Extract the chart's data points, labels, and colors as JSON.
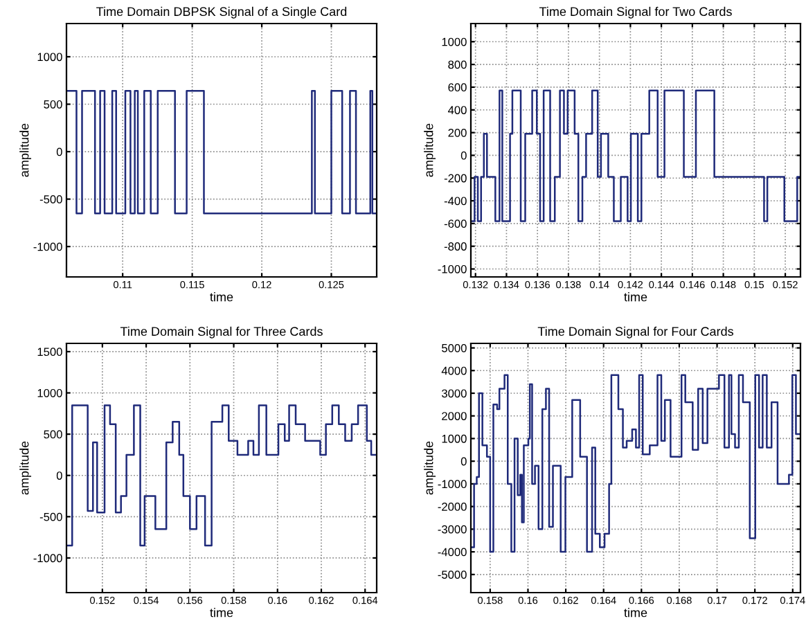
{
  "chart_data": [
    {
      "type": "step",
      "title": "Time Domain DBPSK Signal of a Single Card",
      "xlabel": "time",
      "ylabel": "amplitude",
      "grid": true,
      "xlim": [
        0.10596,
        0.12826
      ],
      "ylim": [
        -1320,
        1350
      ],
      "xticks": [
        0.11,
        0.115,
        0.12,
        0.125
      ],
      "yticks": [
        -1000,
        -500,
        0,
        500,
        1000
      ],
      "series": [
        {
          "color": "#1f2a7a",
          "x": [
            0.10596,
            0.10668,
            0.10708,
            0.10801,
            0.10838,
            0.1087,
            0.10925,
            0.10953,
            0.11019,
            0.11056,
            0.11087,
            0.11109,
            0.11155,
            0.11202,
            0.11252,
            0.11376,
            0.1146,
            0.11584,
            0.1236,
            0.12382,
            0.125,
            0.12578,
            0.12634,
            0.12677,
            0.1278,
            0.12795,
            0.12826
          ],
          "values": [
            640,
            -650,
            640,
            -650,
            640,
            -650,
            640,
            -650,
            640,
            -650,
            640,
            -650,
            640,
            -650,
            640,
            -650,
            640,
            -650,
            640,
            -650,
            640,
            -650,
            640,
            -650,
            640,
            -650,
            -650
          ]
        }
      ]
    },
    {
      "type": "step",
      "title": "Time Domain Signal for Two Cards",
      "xlabel": "time",
      "ylabel": "amplitude",
      "grid": true,
      "xlim": [
        0.1317,
        0.15298
      ],
      "ylim": [
        -1070,
        1160
      ],
      "xticks": [
        0.132,
        0.134,
        0.136,
        0.138,
        0.14,
        0.142,
        0.144,
        0.146,
        0.148,
        0.15,
        0.152
      ],
      "yticks": [
        -1000,
        -800,
        -600,
        -400,
        -200,
        0,
        200,
        400,
        600,
        800,
        1000
      ],
      "series": [
        {
          "color": "#1f2a7a",
          "x": [
            0.1317,
            0.13194,
            0.13215,
            0.13236,
            0.13254,
            0.13274,
            0.13328,
            0.13355,
            0.13373,
            0.13423,
            0.13438,
            0.13492,
            0.13521,
            0.13566,
            0.13596,
            0.13617,
            0.1364,
            0.13682,
            0.13712,
            0.13745,
            0.13771,
            0.13795,
            0.1384,
            0.13864,
            0.1389,
            0.13914,
            0.13953,
            0.13989,
            0.1401,
            0.14057,
            0.14093,
            0.14138,
            0.14182,
            0.14203,
            0.14248,
            0.14271,
            0.14322,
            0.14376,
            0.1442,
            0.14545,
            0.14623,
            0.14742,
            0.15063,
            0.15084,
            0.15194,
            0.15277,
            0.15298
          ],
          "values": [
            -580,
            -190,
            -580,
            -190,
            190,
            -190,
            -580,
            570,
            -580,
            190,
            570,
            -580,
            190,
            570,
            190,
            -580,
            570,
            -580,
            -190,
            570,
            190,
            570,
            190,
            -580,
            -190,
            190,
            570,
            -190,
            190,
            -190,
            -580,
            -190,
            -580,
            190,
            -580,
            190,
            570,
            -190,
            570,
            -190,
            570,
            -190,
            -580,
            -190,
            -580,
            -190,
            -190
          ]
        }
      ]
    },
    {
      "type": "step",
      "title": "Time Domain Signal for Three Cards",
      "xlabel": "time",
      "ylabel": "amplitude",
      "grid": true,
      "xlim": [
        0.15036,
        0.16453
      ],
      "ylim": [
        -1420,
        1600
      ],
      "xticks": [
        0.152,
        0.154,
        0.156,
        0.158,
        0.16,
        0.162,
        0.164
      ],
      "yticks": [
        -1000,
        -500,
        0,
        500,
        1000,
        1500
      ],
      "series": [
        {
          "color": "#1f2a7a",
          "x": [
            0.15036,
            0.15062,
            0.15133,
            0.15157,
            0.15176,
            0.1521,
            0.15235,
            0.15261,
            0.15285,
            0.1531,
            0.15344,
            0.15373,
            0.15393,
            0.15442,
            0.15492,
            0.15521,
            0.15551,
            0.1557,
            0.156,
            0.1563,
            0.15669,
            0.15699,
            0.15748,
            0.15777,
            0.15817,
            0.15866,
            0.1589,
            0.15915,
            0.15949,
            0.16004,
            0.16033,
            0.16053,
            0.16083,
            0.16126,
            0.16195,
            0.16221,
            0.1625,
            0.1628,
            0.16309,
            0.16339,
            0.16368,
            0.16408,
            0.16428,
            0.16453
          ],
          "values": [
            -850,
            850,
            -430,
            400,
            -450,
            850,
            620,
            -450,
            -250,
            250,
            850,
            -850,
            -250,
            -650,
            400,
            650,
            250,
            -250,
            -650,
            -250,
            -850,
            650,
            850,
            420,
            250,
            420,
            250,
            850,
            250,
            620,
            420,
            850,
            620,
            420,
            250,
            620,
            850,
            620,
            420,
            620,
            850,
            420,
            250,
            250
          ]
        }
      ]
    },
    {
      "type": "step",
      "title": "Time Domain Signal for Four Cards",
      "xlabel": "time",
      "ylabel": "amplitude",
      "grid": true,
      "xlim": [
        0.15698,
        0.17441
      ],
      "ylim": [
        -5800,
        5200
      ],
      "xticks": [
        0.158,
        0.16,
        0.162,
        0.164,
        0.166,
        0.168,
        0.17,
        0.172,
        0.174
      ],
      "yticks": [
        -5000,
        -4000,
        -3000,
        -2000,
        -1000,
        0,
        1000,
        2000,
        3000,
        4000,
        5000
      ],
      "series": [
        {
          "color": "#1f2a7a",
          "x": [
            0.15698,
            0.15715,
            0.15729,
            0.15741,
            0.15759,
            0.15783,
            0.158,
            0.15817,
            0.15837,
            0.15849,
            0.15876,
            0.15893,
            0.15912,
            0.15929,
            0.15946,
            0.15959,
            0.15968,
            0.15978,
            0.16002,
            0.1601,
            0.16022,
            0.16037,
            0.16056,
            0.16076,
            0.16095,
            0.16112,
            0.16132,
            0.16173,
            0.16198,
            0.16234,
            0.16276,
            0.16312,
            0.16339,
            0.16356,
            0.1638,
            0.16405,
            0.16429,
            0.16441,
            0.16478,
            0.16502,
            0.16522,
            0.16551,
            0.16571,
            0.16588,
            0.16607,
            0.16644,
            0.16685,
            0.16705,
            0.16724,
            0.16754,
            0.16812,
            0.16832,
            0.16871,
            0.169,
            0.16924,
            0.16949,
            0.1701,
            0.17039,
            0.17063,
            0.17076,
            0.17095,
            0.17115,
            0.17137,
            0.17173,
            0.17202,
            0.17222,
            0.17241,
            0.17263,
            0.17288,
            0.1732,
            0.1738,
            0.17398,
            0.17417,
            0.17441
          ],
          "values": [
            -3800,
            -1000,
            -700,
            3000,
            700,
            200,
            -4000,
            2500,
            2300,
            3200,
            3800,
            -1000,
            -4000,
            1000,
            -1500,
            -600,
            -2700,
            700,
            1000,
            3400,
            -1000,
            -200,
            -3000,
            2300,
            3200,
            -2900,
            -200,
            -4000,
            -700,
            2700,
            200,
            -4000,
            600,
            -3200,
            -3800,
            -3200,
            -1000,
            3800,
            2300,
            600,
            900,
            1400,
            600,
            3800,
            300,
            700,
            3800,
            900,
            2700,
            200,
            3800,
            2600,
            500,
            3200,
            800,
            3200,
            3800,
            600,
            3800,
            1200,
            600,
            3800,
            2600,
            -3400,
            3800,
            600,
            3800,
            600,
            2600,
            -1000,
            -600,
            3800,
            1200,
            1200
          ]
        }
      ]
    }
  ]
}
